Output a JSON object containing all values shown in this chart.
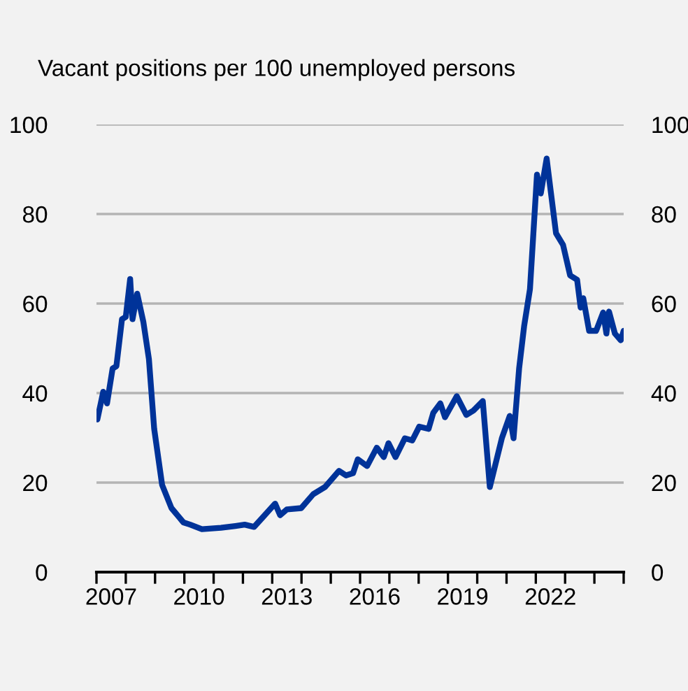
{
  "chart_data": {
    "type": "line",
    "ylabel": "Vacant positions per 100 unemployed persons",
    "series": [
      {
        "color": "#003399",
        "x": [
          2007.03,
          2007.23,
          2007.36,
          2007.55,
          2007.68,
          2007.87,
          2008.0,
          2008.15,
          2008.23,
          2008.39,
          2008.6,
          2008.79,
          2008.97,
          2009.24,
          2009.56,
          2009.97,
          2010.2,
          2010.6,
          2011.25,
          2011.74,
          2012.06,
          2012.38,
          2012.7,
          2013.1,
          2013.27,
          2013.5,
          2013.99,
          2014.4,
          2014.8,
          2015.28,
          2015.52,
          2015.76,
          2015.92,
          2016.24,
          2016.57,
          2016.81,
          2016.97,
          2017.21,
          2017.53,
          2017.78,
          2018.02,
          2018.34,
          2018.5,
          2018.74,
          2018.9,
          2019.3,
          2019.63,
          2019.87,
          2020.19,
          2020.43,
          2020.84,
          2021.11,
          2021.24,
          2021.43,
          2021.6,
          2021.8,
          2022.04,
          2022.17,
          2022.37,
          2022.49,
          2022.69,
          2022.93,
          2023.17,
          2023.41,
          2023.53,
          2023.62,
          2023.82,
          2024.06,
          2024.3,
          2024.41,
          2024.5,
          2024.7,
          2024.9,
          2025.0
        ],
        "values": [
          34.1,
          40.3,
          37.7,
          45.5,
          46.0,
          56.5,
          57.0,
          65.5,
          56.5,
          62.2,
          55.9,
          47.6,
          32.0,
          19.5,
          14.3,
          11.1,
          10.6,
          9.6,
          9.9,
          10.3,
          10.6,
          10.1,
          12.4,
          15.3,
          12.7,
          14.0,
          14.3,
          17.4,
          19.0,
          22.6,
          21.6,
          22.1,
          25.2,
          23.7,
          27.8,
          25.7,
          28.8,
          25.7,
          29.9,
          29.4,
          32.5,
          32.0,
          35.6,
          37.7,
          34.6,
          39.3,
          35.1,
          36.1,
          38.2,
          19.0,
          29.9,
          34.9,
          29.9,
          45.5,
          54.9,
          63.2,
          88.8,
          84.6,
          92.4,
          86.1,
          75.7,
          73.1,
          66.3,
          65.3,
          59.1,
          61.2,
          53.9,
          53.9,
          58.0,
          53.3,
          58.2,
          53.3,
          51.8,
          53.9
        ]
      }
    ],
    "xlim": [
      2007,
      2025
    ],
    "xticks": [
      {
        "value": 2007,
        "label": null
      },
      {
        "value": 2007.5,
        "label": "2007"
      },
      {
        "value": 2008,
        "label": null
      },
      {
        "value": 2009,
        "label": null
      },
      {
        "value": 2010,
        "label": null
      },
      {
        "value": 2010.5,
        "label": "2010"
      },
      {
        "value": 2011,
        "label": null
      },
      {
        "value": 2012,
        "label": null
      },
      {
        "value": 2013,
        "label": null
      },
      {
        "value": 2013.5,
        "label": "2013"
      },
      {
        "value": 2014,
        "label": null
      },
      {
        "value": 2015,
        "label": null
      },
      {
        "value": 2016,
        "label": null
      },
      {
        "value": 2016.5,
        "label": "2016"
      },
      {
        "value": 2017,
        "label": null
      },
      {
        "value": 2018,
        "label": null
      },
      {
        "value": 2019,
        "label": null
      },
      {
        "value": 2019.5,
        "label": "2019"
      },
      {
        "value": 2020,
        "label": null
      },
      {
        "value": 2021,
        "label": null
      },
      {
        "value": 2022,
        "label": null
      },
      {
        "value": 2022.5,
        "label": "2022"
      },
      {
        "value": 2023,
        "label": null
      },
      {
        "value": 2024,
        "label": null
      },
      {
        "value": 2025,
        "label": null
      }
    ],
    "ylim": [
      0,
      100
    ],
    "yticks": [
      0,
      20,
      40,
      60,
      80,
      100
    ],
    "y2lim": [
      0,
      100
    ],
    "y2ticks": [
      0,
      20,
      40,
      60,
      80,
      100
    ],
    "grid": "y",
    "marker": "none",
    "line_style": "solid"
  }
}
